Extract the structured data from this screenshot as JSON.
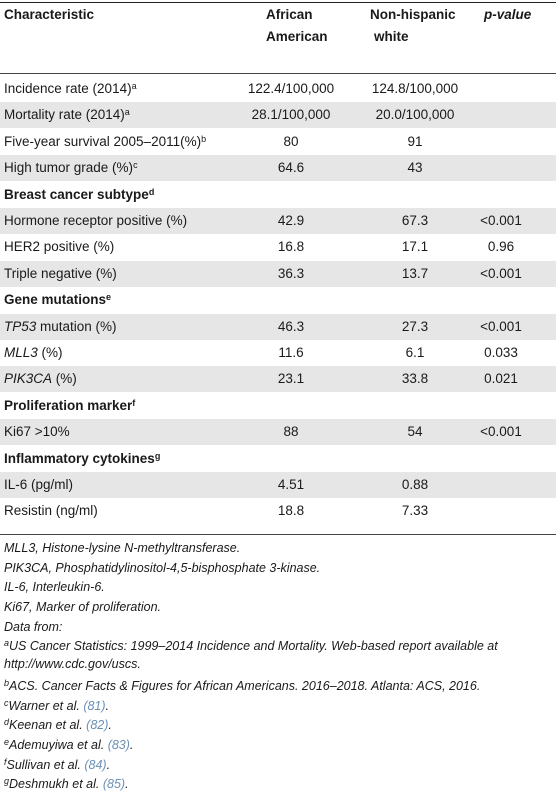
{
  "header": {
    "characteristic": "Characteristic",
    "aa_line1": "African",
    "aa_line2": "American",
    "nhw_line1": "Non-hispanic",
    "nhw_line2": "white",
    "p_value": "p-value"
  },
  "rows": [
    {
      "label": "Incidence rate (2014)",
      "sup": "a",
      "aa": "122.4/100,000",
      "nhw": "124.8/100,000",
      "p": ""
    },
    {
      "label": "Mortality rate (2014)",
      "sup": "a",
      "aa": "28.1/100,000",
      "nhw": "20.0/100,000",
      "p": ""
    },
    {
      "label": "Five-year survival 2005–2011(%)",
      "sup": "b",
      "aa": "80",
      "nhw": "91",
      "p": ""
    },
    {
      "label": "High tumor grade (%)",
      "sup": "c",
      "aa": "64.6",
      "nhw": "43",
      "p": ""
    },
    {
      "label": "Breast cancer subtype",
      "sup": "d",
      "aa": "",
      "nhw": "",
      "p": ""
    },
    {
      "label": "Hormone receptor positive (%)",
      "sup": "",
      "aa": "42.9",
      "nhw": "67.3",
      "p": "<0.001"
    },
    {
      "label": "HER2 positive (%)",
      "sup": "",
      "aa": "16.8",
      "nhw": "17.1",
      "p": "0.96"
    },
    {
      "label": "Triple negative (%)",
      "sup": "",
      "aa": "36.3",
      "nhw": "13.7",
      "p": "<0.001"
    },
    {
      "label": "Gene mutations",
      "sup": "e",
      "aa": "",
      "nhw": "",
      "p": ""
    },
    {
      "label": "TP53 mutation (%)",
      "sup": "",
      "aa": "46.3",
      "nhw": "27.3",
      "p": "<0.001"
    },
    {
      "label": "MLL3 (%)",
      "sup": "",
      "aa": "11.6",
      "nhw": "6.1",
      "p": "0.033"
    },
    {
      "label": "PIK3CA (%)",
      "sup": "",
      "aa": "23.1",
      "nhw": "33.8",
      "p": "0.021"
    },
    {
      "label": "Proliferation marker",
      "sup": "f",
      "aa": "",
      "nhw": "",
      "p": ""
    },
    {
      "label": "Ki67 >10%",
      "sup": "",
      "aa": "88",
      "nhw": "54",
      "p": "<0.001"
    },
    {
      "label": "Inflammatory cytokines",
      "sup": "g",
      "aa": "",
      "nhw": "",
      "p": ""
    },
    {
      "label": "IL-6 (pg/ml)",
      "sup": "",
      "aa": "4.51",
      "nhw": "0.88",
      "p": ""
    },
    {
      "label": "Resistin (ng/ml)",
      "sup": "",
      "aa": "18.8",
      "nhw": "7.33",
      "p": ""
    }
  ],
  "footnotes": {
    "mll3": "MLL3, Histone-lysine N-methyltransferase.",
    "pik3ca": "PIK3CA, Phosphatidylinositol-4,5-bisphosphate 3-kinase.",
    "il6": "IL-6, Interleukin-6.",
    "ki67": "Ki67, Marker of proliferation.",
    "data_from": "Data from:",
    "a_sup": "a",
    "a_text": "US Cancer Statistics: 1999–2014 Incidence and Mortality. Web-based report available at http://www.cdc.gov/uscs.",
    "b_sup": "b",
    "b_text": "ACS. Cancer Facts & Figures for African Americans. 2016–2018. Atlanta: ACS, 2016.",
    "c_sup": "c",
    "c_text": "Warner et al.",
    "c_ref": "(81)",
    "d_sup": "d",
    "d_text": "Keenan et al.",
    "d_ref": "(82)",
    "e_sup": "e",
    "e_text": "Ademuyiwa et al.",
    "e_ref": "(83)",
    "f_sup": "f",
    "f_text": "Sullivan et al.",
    "f_ref": "(84)",
    "g_sup": "g",
    "g_text": "Deshmukh et al.",
    "g_ref": "(85)"
  }
}
